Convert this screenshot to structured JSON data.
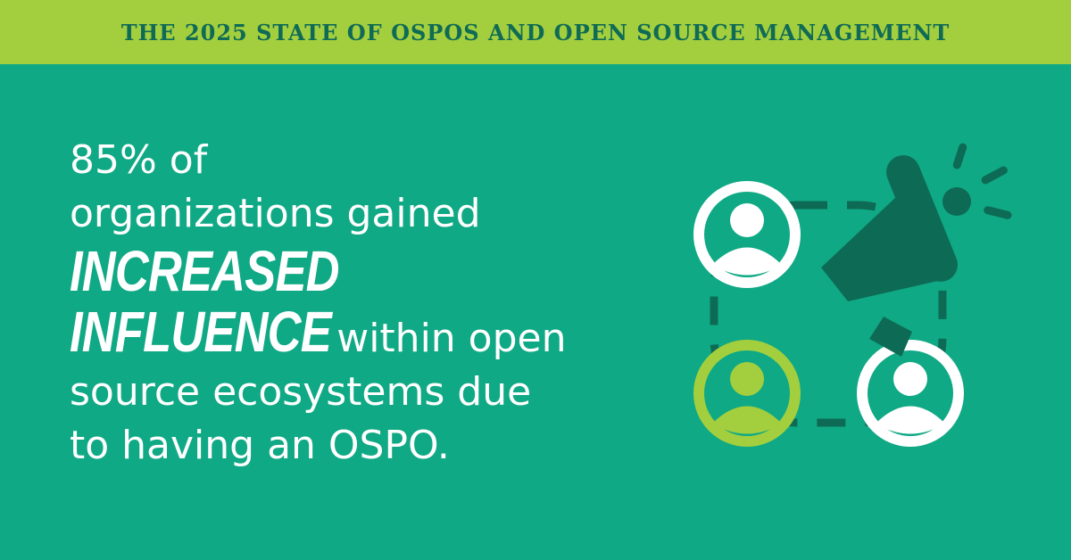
{
  "banner": {
    "title": "THE 2025 STATE OF OSPOS AND OPEN SOURCE MANAGEMENT"
  },
  "stat": {
    "line1": "85% of",
    "line2": "organizations gained",
    "emphasis1": "INCREASED",
    "emphasis2": "INFLUENCE",
    "line3": "within open",
    "line4": "source ecosystems due",
    "line5": "to having an OSPO."
  },
  "colors": {
    "background": "#10a985",
    "banner": "#a3cf3e",
    "banner_text": "#0f6b55",
    "icon_dark": "#0d6b55",
    "icon_light": "#a3cf3e",
    "white": "#ffffff"
  },
  "icons": [
    "user-icon",
    "megaphone-icon",
    "connection-ring-icon"
  ]
}
